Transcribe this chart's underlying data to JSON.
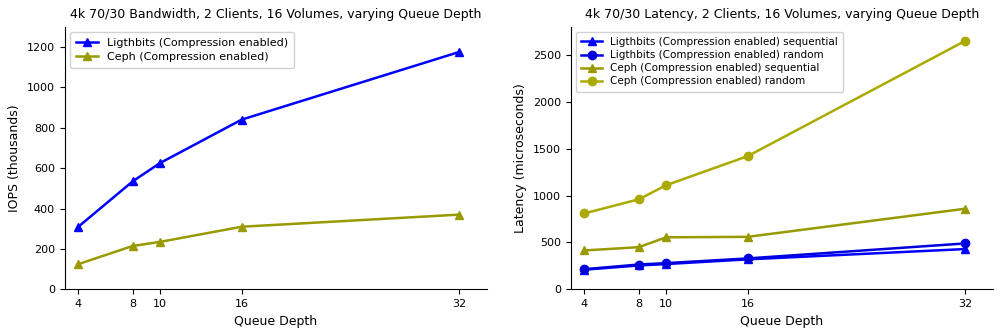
{
  "queue_depth": [
    4,
    8,
    10,
    16,
    32
  ],
  "bw_title": "4k 70/30 Bandwidth, 2 Clients, 16 Volumes, varying Queue Depth",
  "bw_ylabel": "IOPS (thousands)",
  "bw_xlabel": "Queue Depth",
  "bw_ligthbits": [
    310,
    535,
    625,
    840,
    1175
  ],
  "bw_ceph": [
    125,
    215,
    235,
    310,
    370
  ],
  "bw_ligthbits_label": "Ligthbits (Compression enabled)",
  "bw_ceph_label": "Ceph (Compression enabled)",
  "bw_ylim": [
    0,
    1300
  ],
  "lat_title": "4k 70/30 Latency, 2 Clients, 16 Volumes, varying Queue Depth",
  "lat_ylabel": "Latency (microseconds)",
  "lat_xlabel": "Queue Depth",
  "lat_ligthbits_seq": [
    210,
    255,
    270,
    320,
    430
  ],
  "lat_ligthbits_rnd": [
    215,
    265,
    280,
    330,
    490
  ],
  "lat_ceph_seq": [
    415,
    450,
    555,
    560,
    860
  ],
  "lat_ceph_rnd": [
    810,
    960,
    1110,
    1420,
    2650
  ],
  "lat_ligthbits_seq_label": "Ligthbits (Compression enabled) sequential",
  "lat_ligthbits_rnd_label": "Ligthbits (Compression enabled) random",
  "lat_ceph_seq_label": "Ceph (Compression enabled) sequential",
  "lat_ceph_rnd_label": "Ceph (Compression enabled) random",
  "lat_ylim": [
    0,
    2800
  ],
  "color_blue": "#0000ff",
  "color_blue2": "#0000dd",
  "color_yellow": "#999900",
  "color_yellow2": "#aaaa00",
  "bg_color": "#ffffff",
  "ax_bg_color": "#ffffff"
}
